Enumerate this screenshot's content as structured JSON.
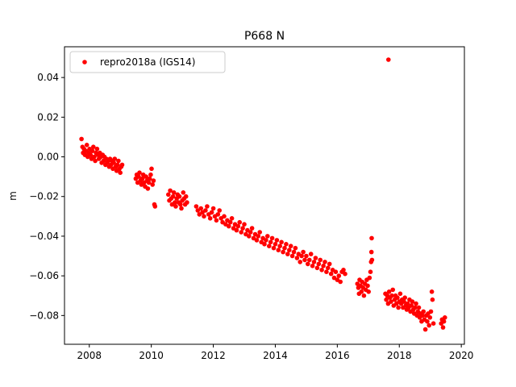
{
  "chart_data": {
    "type": "scatter",
    "title": "P668 N",
    "xlabel": "",
    "ylabel": "m",
    "xlim": [
      2007.2,
      2020.1
    ],
    "ylim": [
      -0.0945,
      0.0555
    ],
    "xticks": [
      2008,
      2010,
      2012,
      2014,
      2016,
      2018,
      2020
    ],
    "yticks": [
      0.04,
      0.02,
      0.0,
      -0.02,
      -0.04,
      -0.06,
      -0.08
    ],
    "xtick_labels": [
      "2008",
      "2010",
      "2012",
      "2014",
      "2016",
      "2018",
      "2020"
    ],
    "ytick_labels": [
      "0.04",
      "0.02",
      "0.00",
      "−0.02",
      "−0.04",
      "−0.06",
      "−0.08"
    ],
    "grid": false,
    "legend": {
      "placement": "upper-left",
      "entries": [
        "repro2018a (IGS14)"
      ]
    },
    "series": [
      {
        "name": "repro2018a (IGS14)",
        "color": "#ff0000",
        "marker": "circle",
        "points": [
          [
            2007.75,
            0.009
          ],
          [
            2007.78,
            0.005
          ],
          [
            2007.8,
            0.002
          ],
          [
            2007.83,
            0.004
          ],
          [
            2007.86,
            0.001
          ],
          [
            2007.89,
            0.003
          ],
          [
            2007.92,
            0.006
          ],
          [
            2007.95,
            0.0
          ],
          [
            2007.98,
            0.002
          ],
          [
            2008.01,
            0.004
          ],
          [
            2008.04,
            0.001
          ],
          [
            2008.07,
            -0.001
          ],
          [
            2008.1,
            0.003
          ],
          [
            2008.13,
            0.005
          ],
          [
            2008.16,
            0.0
          ],
          [
            2008.19,
            -0.002
          ],
          [
            2008.22,
            0.002
          ],
          [
            2008.25,
            0.004
          ],
          [
            2008.28,
            0.001
          ],
          [
            2008.31,
            -0.001
          ],
          [
            2008.34,
            0.002
          ],
          [
            2008.37,
            0.0
          ],
          [
            2008.4,
            -0.003
          ],
          [
            2008.43,
            0.001
          ],
          [
            2008.46,
            -0.002
          ],
          [
            2008.49,
            0.0
          ],
          [
            2008.52,
            -0.004
          ],
          [
            2008.55,
            -0.001
          ],
          [
            2008.58,
            -0.003
          ],
          [
            2008.61,
            -0.002
          ],
          [
            2008.64,
            -0.005
          ],
          [
            2008.67,
            -0.001
          ],
          [
            2008.7,
            -0.004
          ],
          [
            2008.73,
            -0.002
          ],
          [
            2008.76,
            -0.006
          ],
          [
            2008.79,
            -0.003
          ],
          [
            2008.82,
            -0.001
          ],
          [
            2008.85,
            -0.005
          ],
          [
            2008.88,
            -0.007
          ],
          [
            2008.91,
            -0.004
          ],
          [
            2008.94,
            -0.002
          ],
          [
            2008.97,
            -0.006
          ],
          [
            2009.0,
            -0.008
          ],
          [
            2009.03,
            -0.005
          ],
          [
            2009.06,
            -0.004
          ],
          [
            2009.5,
            -0.011
          ],
          [
            2009.53,
            -0.009
          ],
          [
            2009.56,
            -0.013
          ],
          [
            2009.59,
            -0.01
          ],
          [
            2009.62,
            -0.008
          ],
          [
            2009.65,
            -0.012
          ],
          [
            2009.68,
            -0.014
          ],
          [
            2009.71,
            -0.011
          ],
          [
            2009.74,
            -0.009
          ],
          [
            2009.77,
            -0.013
          ],
          [
            2009.8,
            -0.015
          ],
          [
            2009.83,
            -0.01
          ],
          [
            2009.86,
            -0.012
          ],
          [
            2009.89,
            -0.016
          ],
          [
            2009.92,
            -0.013
          ],
          [
            2009.95,
            -0.011
          ],
          [
            2009.98,
            -0.009
          ],
          [
            2010.01,
            -0.006
          ],
          [
            2010.04,
            -0.014
          ],
          [
            2010.07,
            -0.012
          ],
          [
            2010.1,
            -0.024
          ],
          [
            2010.12,
            -0.025
          ],
          [
            2010.55,
            -0.019
          ],
          [
            2010.58,
            -0.022
          ],
          [
            2010.61,
            -0.017
          ],
          [
            2010.64,
            -0.021
          ],
          [
            2010.67,
            -0.024
          ],
          [
            2010.7,
            -0.02
          ],
          [
            2010.73,
            -0.018
          ],
          [
            2010.76,
            -0.023
          ],
          [
            2010.79,
            -0.025
          ],
          [
            2010.82,
            -0.021
          ],
          [
            2010.85,
            -0.019
          ],
          [
            2010.88,
            -0.023
          ],
          [
            2010.91,
            -0.02
          ],
          [
            2010.94,
            -0.024
          ],
          [
            2010.97,
            -0.026
          ],
          [
            2011.0,
            -0.022
          ],
          [
            2011.03,
            -0.018
          ],
          [
            2011.06,
            -0.021
          ],
          [
            2011.09,
            -0.024
          ],
          [
            2011.12,
            -0.02
          ],
          [
            2011.15,
            -0.023
          ],
          [
            2011.45,
            -0.025
          ],
          [
            2011.5,
            -0.027
          ],
          [
            2011.55,
            -0.029
          ],
          [
            2011.6,
            -0.026
          ],
          [
            2011.65,
            -0.028
          ],
          [
            2011.7,
            -0.03
          ],
          [
            2011.75,
            -0.027
          ],
          [
            2011.8,
            -0.025
          ],
          [
            2011.85,
            -0.029
          ],
          [
            2011.9,
            -0.031
          ],
          [
            2011.95,
            -0.028
          ],
          [
            2012.0,
            -0.026
          ],
          [
            2012.05,
            -0.03
          ],
          [
            2012.1,
            -0.032
          ],
          [
            2012.15,
            -0.029
          ],
          [
            2012.2,
            -0.027
          ],
          [
            2012.25,
            -0.031
          ],
          [
            2012.3,
            -0.033
          ],
          [
            2012.35,
            -0.03
          ],
          [
            2012.4,
            -0.034
          ],
          [
            2012.45,
            -0.032
          ],
          [
            2012.5,
            -0.035
          ],
          [
            2012.55,
            -0.033
          ],
          [
            2012.6,
            -0.031
          ],
          [
            2012.65,
            -0.036
          ],
          [
            2012.7,
            -0.034
          ],
          [
            2012.75,
            -0.037
          ],
          [
            2012.8,
            -0.035
          ],
          [
            2012.85,
            -0.033
          ],
          [
            2012.9,
            -0.038
          ],
          [
            2012.95,
            -0.036
          ],
          [
            2013.0,
            -0.034
          ],
          [
            2013.05,
            -0.039
          ],
          [
            2013.1,
            -0.037
          ],
          [
            2013.15,
            -0.04
          ],
          [
            2013.2,
            -0.038
          ],
          [
            2013.25,
            -0.036
          ],
          [
            2013.3,
            -0.041
          ],
          [
            2013.35,
            -0.039
          ],
          [
            2013.4,
            -0.042
          ],
          [
            2013.45,
            -0.04
          ],
          [
            2013.5,
            -0.038
          ],
          [
            2013.55,
            -0.043
          ],
          [
            2013.6,
            -0.041
          ],
          [
            2013.65,
            -0.044
          ],
          [
            2013.7,
            -0.042
          ],
          [
            2013.75,
            -0.04
          ],
          [
            2013.8,
            -0.045
          ],
          [
            2013.85,
            -0.043
          ],
          [
            2013.9,
            -0.041
          ],
          [
            2013.95,
            -0.046
          ],
          [
            2014.0,
            -0.044
          ],
          [
            2014.05,
            -0.042
          ],
          [
            2014.1,
            -0.047
          ],
          [
            2014.15,
            -0.045
          ],
          [
            2014.2,
            -0.043
          ],
          [
            2014.25,
            -0.048
          ],
          [
            2014.3,
            -0.046
          ],
          [
            2014.35,
            -0.044
          ],
          [
            2014.4,
            -0.049
          ],
          [
            2014.45,
            -0.047
          ],
          [
            2014.5,
            -0.045
          ],
          [
            2014.55,
            -0.05
          ],
          [
            2014.6,
            -0.048
          ],
          [
            2014.65,
            -0.046
          ],
          [
            2014.7,
            -0.051
          ],
          [
            2014.75,
            -0.049
          ],
          [
            2014.8,
            -0.053
          ],
          [
            2014.85,
            -0.05
          ],
          [
            2014.9,
            -0.048
          ],
          [
            2014.95,
            -0.052
          ],
          [
            2015.0,
            -0.05
          ],
          [
            2015.05,
            -0.054
          ],
          [
            2015.1,
            -0.052
          ],
          [
            2015.15,
            -0.049
          ],
          [
            2015.2,
            -0.055
          ],
          [
            2015.25,
            -0.053
          ],
          [
            2015.3,
            -0.051
          ],
          [
            2015.35,
            -0.056
          ],
          [
            2015.4,
            -0.054
          ],
          [
            2015.45,
            -0.052
          ],
          [
            2015.5,
            -0.057
          ],
          [
            2015.55,
            -0.055
          ],
          [
            2015.6,
            -0.053
          ],
          [
            2015.65,
            -0.058
          ],
          [
            2015.7,
            -0.056
          ],
          [
            2015.75,
            -0.054
          ],
          [
            2015.8,
            -0.059
          ],
          [
            2015.85,
            -0.057
          ],
          [
            2015.9,
            -0.061
          ],
          [
            2015.95,
            -0.058
          ],
          [
            2016.0,
            -0.062
          ],
          [
            2016.05,
            -0.06
          ],
          [
            2016.1,
            -0.063
          ],
          [
            2016.15,
            -0.058
          ],
          [
            2016.2,
            -0.057
          ],
          [
            2016.25,
            -0.059
          ],
          [
            2016.65,
            -0.064
          ],
          [
            2016.68,
            -0.066
          ],
          [
            2016.7,
            -0.069
          ],
          [
            2016.72,
            -0.062
          ],
          [
            2016.75,
            -0.065
          ],
          [
            2016.78,
            -0.068
          ],
          [
            2016.8,
            -0.063
          ],
          [
            2016.83,
            -0.066
          ],
          [
            2016.86,
            -0.07
          ],
          [
            2016.89,
            -0.064
          ],
          [
            2016.92,
            -0.067
          ],
          [
            2016.95,
            -0.062
          ],
          [
            2016.98,
            -0.065
          ],
          [
            2017.01,
            -0.068
          ],
          [
            2017.04,
            -0.061
          ],
          [
            2017.07,
            -0.058
          ],
          [
            2017.09,
            -0.053
          ],
          [
            2017.1,
            -0.048
          ],
          [
            2017.11,
            -0.041
          ],
          [
            2017.12,
            -0.052
          ],
          [
            2017.55,
            -0.069
          ],
          [
            2017.58,
            -0.072
          ],
          [
            2017.61,
            -0.07
          ],
          [
            2017.64,
            -0.074
          ],
          [
            2017.67,
            -0.068
          ],
          [
            2017.7,
            -0.071
          ],
          [
            2017.73,
            -0.073
          ],
          [
            2017.76,
            -0.07
          ],
          [
            2017.79,
            -0.067
          ],
          [
            2017.82,
            -0.075
          ],
          [
            2017.85,
            -0.072
          ],
          [
            2017.88,
            -0.07
          ],
          [
            2017.91,
            -0.074
          ],
          [
            2017.94,
            -0.071
          ],
          [
            2017.97,
            -0.076
          ],
          [
            2018.0,
            -0.073
          ],
          [
            2018.03,
            -0.069
          ],
          [
            2018.06,
            -0.074
          ],
          [
            2018.09,
            -0.072
          ],
          [
            2018.12,
            -0.076
          ],
          [
            2018.15,
            -0.073
          ],
          [
            2018.18,
            -0.071
          ],
          [
            2018.21,
            -0.075
          ],
          [
            2018.24,
            -0.077
          ],
          [
            2018.27,
            -0.074
          ],
          [
            2018.3,
            -0.076
          ],
          [
            2018.33,
            -0.072
          ],
          [
            2018.36,
            -0.078
          ],
          [
            2018.39,
            -0.075
          ],
          [
            2018.42,
            -0.073
          ],
          [
            2018.45,
            -0.077
          ],
          [
            2018.48,
            -0.079
          ],
          [
            2018.51,
            -0.076
          ],
          [
            2018.54,
            -0.074
          ],
          [
            2018.57,
            -0.08
          ],
          [
            2018.6,
            -0.078
          ],
          [
            2018.63,
            -0.076
          ],
          [
            2018.66,
            -0.081
          ],
          [
            2018.69,
            -0.079
          ],
          [
            2018.72,
            -0.083
          ],
          [
            2018.75,
            -0.08
          ],
          [
            2018.78,
            -0.078
          ],
          [
            2018.81,
            -0.082
          ],
          [
            2018.84,
            -0.087
          ],
          [
            2018.87,
            -0.08
          ],
          [
            2018.9,
            -0.083
          ],
          [
            2018.93,
            -0.079
          ],
          [
            2018.96,
            -0.085
          ],
          [
            2018.99,
            -0.081
          ],
          [
            2019.02,
            -0.078
          ],
          [
            2019.05,
            -0.068
          ],
          [
            2019.07,
            -0.072
          ],
          [
            2019.1,
            -0.084
          ],
          [
            2019.35,
            -0.084
          ],
          [
            2019.38,
            -0.082
          ],
          [
            2019.41,
            -0.086
          ],
          [
            2019.44,
            -0.083
          ],
          [
            2019.47,
            -0.081
          ],
          [
            2017.65,
            0.049
          ]
        ]
      }
    ]
  }
}
